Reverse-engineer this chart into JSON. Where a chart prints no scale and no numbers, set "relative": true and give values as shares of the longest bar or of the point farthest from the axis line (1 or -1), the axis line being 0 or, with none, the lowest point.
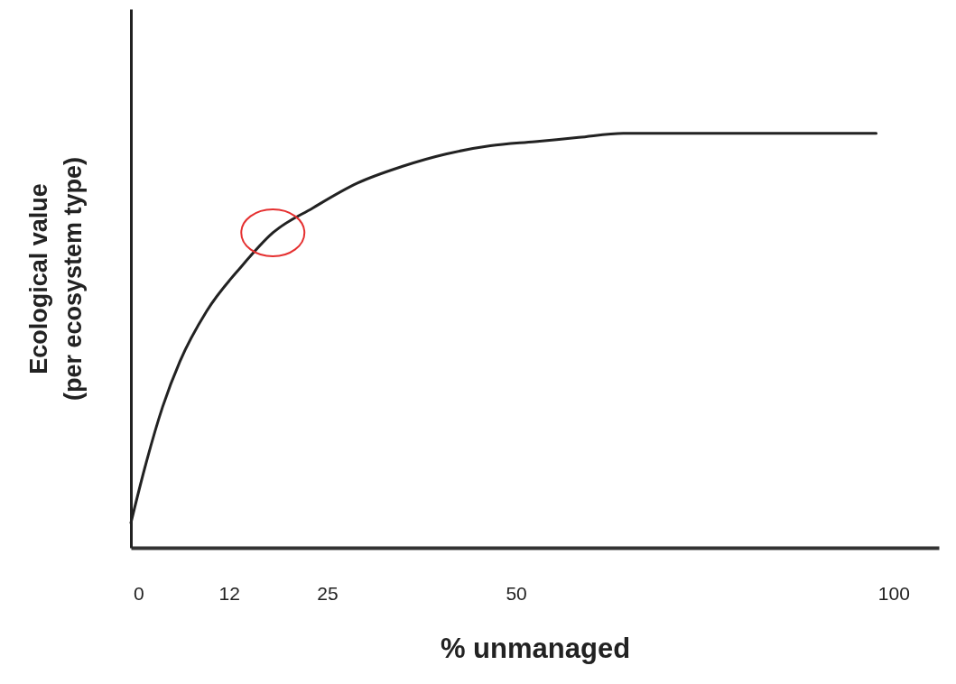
{
  "chart_data": {
    "type": "line",
    "xlabel": "% unmanaged",
    "ylabel": "Ecological value\n(per ecosystem type)",
    "relative": true,
    "xlim": [
      -1,
      106
    ],
    "xticks": [
      0,
      12,
      25,
      50,
      100
    ],
    "grid": false,
    "marker": "none",
    "line_style": "solid",
    "series": [
      {
        "color": "#222222",
        "x": [
          -1,
          0.8,
          3.2,
          5.5,
          9.0,
          13.7,
          17.8,
          23.1,
          29.0,
          34.9,
          40.7,
          46.6,
          52.5,
          58.3,
          64.2,
          70.1,
          75.9,
          87.7,
          97.7
        ],
        "values": [
          0.06,
          0.19,
          0.34,
          0.45,
          0.57,
          0.68,
          0.76,
          0.82,
          0.88,
          0.92,
          0.95,
          0.97,
          0.98,
          0.99,
          1.0,
          1.0,
          1.0,
          1.0,
          1.0
        ]
      }
    ]
  }
}
